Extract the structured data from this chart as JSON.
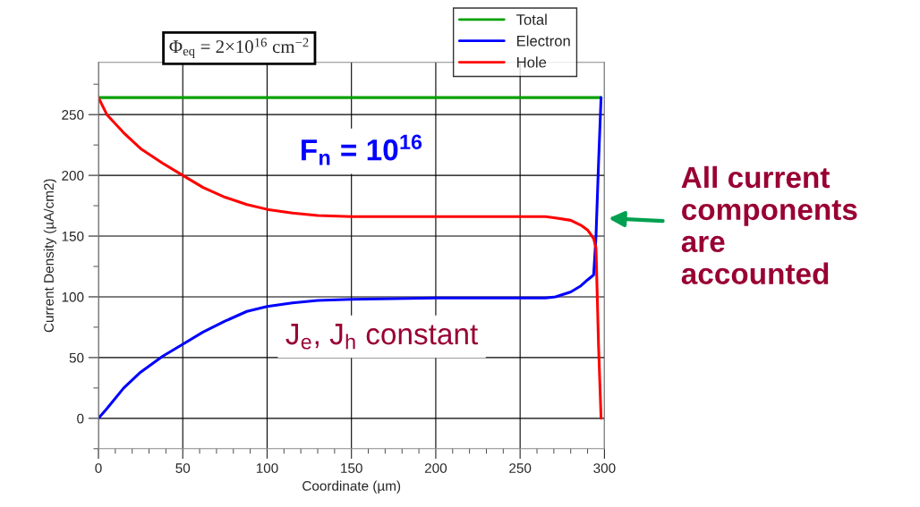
{
  "chart_data": {
    "type": "line",
    "title": "Φ$_{eq}$ = 2×10$^{16}$ cm$^{−2}$",
    "xlabel": "Coordinate (µm)",
    "ylabel": "Current Density (µA/cm2)",
    "x": [
      0,
      5,
      15,
      25,
      38,
      50,
      62,
      75,
      88,
      100,
      115,
      130,
      150,
      200,
      250,
      265,
      271,
      280,
      286,
      290,
      293.6,
      295,
      296.5,
      298
    ],
    "series": [
      {
        "name": "Total",
        "color": "#00a000",
        "values": [
          264,
          264,
          264,
          264,
          264,
          264,
          264,
          264,
          264,
          264,
          264,
          264,
          264,
          264,
          264,
          264,
          264,
          264,
          264,
          264,
          264,
          264,
          264,
          264
        ]
      },
      {
        "name": "Electron",
        "color": "#0000ff",
        "values": [
          0,
          8,
          25,
          38,
          51,
          61,
          71,
          80,
          88,
          92,
          95,
          97,
          98,
          99,
          99,
          99,
          100,
          104,
          109,
          114,
          118,
          150,
          210,
          264
        ]
      },
      {
        "name": "Hole",
        "color": "#ff0000",
        "values": [
          264,
          250,
          235,
          222,
          210,
          200,
          190,
          182,
          176,
          172,
          169,
          167,
          166,
          166,
          166,
          166,
          165,
          163,
          159,
          155,
          148,
          140,
          60,
          0
        ]
      }
    ],
    "xlim": [
      0,
      300
    ],
    "xticks": [
      0,
      50,
      100,
      150,
      200,
      250,
      300
    ],
    "ylim": [
      -25,
      293
    ],
    "yticks": [
      0,
      50,
      100,
      150,
      200,
      250
    ],
    "grid": true,
    "legend": "top right",
    "annotations": [
      "F$_{n}$ = 10$^{16}$",
      "J$_{e}$, J$_{h}$ constant",
      {
        "text": "All current\ncomponents\nare\naccounted",
        "x": 298,
        "y": 165
      }
    ]
  }
}
